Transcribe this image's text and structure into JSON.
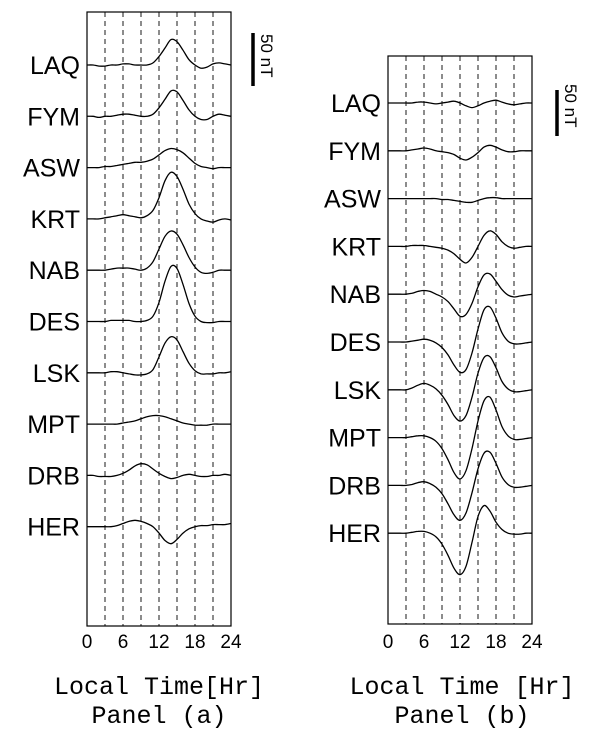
{
  "chart_data": [
    {
      "type": "line",
      "panel_label": "Panel (a)",
      "xlabel": "Local Time[Hr]",
      "xlim": [
        0,
        24
      ],
      "x_ticks": [
        "0",
        "6",
        "12",
        "18",
        "24"
      ],
      "scale_bar": {
        "label": "50 nT",
        "value": 50
      },
      "stations": [
        "LAQ",
        "FYM",
        "ASW",
        "KRT",
        "NAB",
        "DES",
        "LSK",
        "MPT",
        "DRB",
        "HER"
      ],
      "x": [
        0,
        1,
        2,
        3,
        4,
        5,
        6,
        7,
        8,
        9,
        10,
        11,
        12,
        13,
        14,
        15,
        16,
        17,
        18,
        19,
        20,
        21,
        22,
        23,
        24
      ],
      "series": [
        {
          "name": "LAQ",
          "values": [
            0,
            0,
            -1,
            -1,
            0,
            0,
            1,
            1,
            0,
            0,
            0,
            2,
            8,
            16,
            24,
            22,
            14,
            5,
            0,
            -3,
            -2,
            1,
            2,
            1,
            0
          ]
        },
        {
          "name": "FYM",
          "values": [
            0,
            0,
            -1,
            0,
            0,
            1,
            2,
            2,
            1,
            0,
            0,
            2,
            8,
            16,
            24,
            23,
            15,
            6,
            0,
            -3,
            -3,
            0,
            2,
            1,
            0
          ]
        },
        {
          "name": "ASW",
          "values": [
            0,
            0,
            0,
            1,
            1,
            2,
            3,
            4,
            5,
            5,
            6,
            8,
            12,
            16,
            18,
            17,
            14,
            9,
            4,
            1,
            0,
            -1,
            0,
            0,
            0
          ]
        },
        {
          "name": "KRT",
          "values": [
            0,
            0,
            0,
            1,
            2,
            3,
            4,
            3,
            2,
            1,
            3,
            8,
            20,
            36,
            44,
            40,
            28,
            14,
            5,
            0,
            -2,
            -3,
            -1,
            0,
            -1
          ]
        },
        {
          "name": "NAB",
          "values": [
            0,
            0,
            0,
            0,
            1,
            2,
            2,
            2,
            1,
            0,
            2,
            8,
            20,
            32,
            37,
            34,
            24,
            12,
            3,
            -2,
            -3,
            -2,
            0,
            0,
            0
          ]
        },
        {
          "name": "DES",
          "values": [
            0,
            0,
            0,
            0,
            1,
            1,
            1,
            1,
            0,
            0,
            1,
            5,
            18,
            38,
            52,
            50,
            35,
            17,
            5,
            0,
            -1,
            -1,
            0,
            0,
            0
          ]
        },
        {
          "name": "LSK",
          "values": [
            0,
            0,
            0,
            0,
            1,
            1,
            0,
            -1,
            -2,
            -2,
            -1,
            3,
            15,
            28,
            34,
            31,
            20,
            9,
            2,
            -1,
            -1,
            -1,
            0,
            0,
            1
          ]
        },
        {
          "name": "MPT",
          "values": [
            0,
            0,
            0,
            0,
            0,
            0,
            1,
            2,
            3,
            5,
            7,
            8,
            8,
            7,
            5,
            3,
            1,
            0,
            -1,
            -1,
            -1,
            0,
            0,
            0,
            0
          ]
        },
        {
          "name": "DRB",
          "values": [
            0,
            0,
            -1,
            -1,
            -1,
            0,
            2,
            5,
            9,
            11,
            10,
            6,
            2,
            -1,
            -3,
            -2,
            0,
            1,
            0,
            -1,
            -1,
            0,
            0,
            1,
            0
          ]
        },
        {
          "name": "HER",
          "values": [
            0,
            0,
            0,
            0,
            0,
            1,
            3,
            5,
            6,
            5,
            3,
            0,
            -6,
            -13,
            -16,
            -12,
            -6,
            -2,
            0,
            1,
            1,
            2,
            2,
            2,
            3
          ]
        }
      ]
    },
    {
      "type": "line",
      "panel_label": "Panel (b)",
      "xlabel": "Local Time [Hr]",
      "xlim": [
        0,
        24
      ],
      "x_ticks": [
        "0",
        "6",
        "12",
        "18",
        "24"
      ],
      "scale_bar": {
        "label": "50 nT",
        "value": 50
      },
      "stations": [
        "LAQ",
        "FYM",
        "ASW",
        "KRT",
        "NAB",
        "DES",
        "LSK",
        "MPT",
        "DRB",
        "HER"
      ],
      "x": [
        0,
        1,
        2,
        3,
        4,
        5,
        6,
        7,
        8,
        9,
        10,
        11,
        12,
        13,
        14,
        15,
        16,
        17,
        18,
        19,
        20,
        21,
        22,
        23,
        24
      ],
      "series": [
        {
          "name": "LAQ",
          "values": [
            0,
            0,
            0,
            0,
            0,
            1,
            1,
            0,
            -1,
            0,
            1,
            2,
            0,
            -3,
            -5,
            -3,
            0,
            2,
            3,
            1,
            -1,
            -2,
            -1,
            0,
            0
          ]
        },
        {
          "name": "FYM",
          "values": [
            0,
            0,
            0,
            0,
            1,
            2,
            3,
            2,
            0,
            -1,
            -2,
            -4,
            -8,
            -10,
            -7,
            -2,
            4,
            6,
            4,
            1,
            -1,
            -1,
            0,
            0,
            0
          ]
        },
        {
          "name": "ASW",
          "values": [
            0,
            0,
            0,
            0,
            0,
            0,
            0,
            0,
            0,
            -1,
            -1,
            -2,
            -3,
            -4,
            -4,
            -2,
            0,
            1,
            1,
            0,
            0,
            0,
            0,
            0,
            0
          ]
        },
        {
          "name": "KRT",
          "values": [
            0,
            0,
            0,
            0,
            1,
            1,
            1,
            0,
            -1,
            -2,
            -4,
            -8,
            -14,
            -18,
            -12,
            0,
            12,
            17,
            13,
            5,
            0,
            -2,
            -1,
            0,
            0
          ]
        },
        {
          "name": "NAB",
          "values": [
            0,
            0,
            0,
            0,
            1,
            3,
            4,
            3,
            0,
            -3,
            -8,
            -16,
            -24,
            -22,
            -10,
            8,
            21,
            22,
            14,
            5,
            -1,
            -3,
            -2,
            -1,
            0
          ]
        },
        {
          "name": "DES",
          "values": [
            0,
            0,
            0,
            0,
            1,
            2,
            3,
            2,
            -1,
            -6,
            -14,
            -25,
            -33,
            -30,
            -12,
            14,
            35,
            38,
            26,
            10,
            1,
            -2,
            -2,
            -1,
            0
          ]
        },
        {
          "name": "LSK",
          "values": [
            0,
            0,
            0,
            0,
            2,
            5,
            7,
            5,
            1,
            -6,
            -16,
            -28,
            -34,
            -28,
            -8,
            18,
            35,
            36,
            24,
            9,
            1,
            -2,
            -2,
            -1,
            0
          ]
        },
        {
          "name": "MPT",
          "values": [
            0,
            0,
            0,
            0,
            1,
            2,
            2,
            0,
            -4,
            -12,
            -24,
            -38,
            -45,
            -36,
            -12,
            18,
            40,
            44,
            30,
            12,
            2,
            -2,
            -2,
            -1,
            0
          ]
        },
        {
          "name": "DRB",
          "values": [
            0,
            0,
            0,
            0,
            1,
            3,
            4,
            2,
            -2,
            -9,
            -20,
            -32,
            -38,
            -30,
            -8,
            18,
            35,
            36,
            24,
            9,
            1,
            -2,
            -2,
            -1,
            0
          ]
        },
        {
          "name": "HER",
          "values": [
            0,
            0,
            0,
            0,
            1,
            2,
            2,
            0,
            -4,
            -12,
            -24,
            -38,
            -45,
            -36,
            -10,
            18,
            30,
            24,
            12,
            4,
            0,
            -1,
            -1,
            0,
            0
          ]
        }
      ]
    }
  ]
}
